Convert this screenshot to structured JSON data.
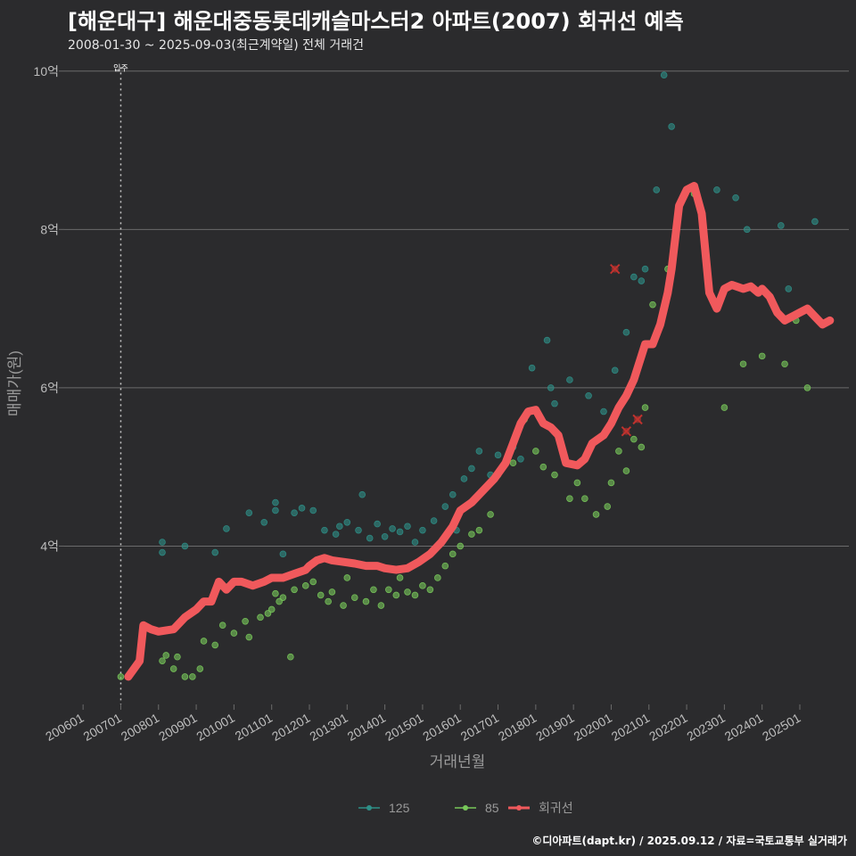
{
  "header": {
    "title": "[해운대구] 해운대중동롯데캐슬마스터2 아파트(2007) 회귀선 예측",
    "subtitle": "2008-01-30 ~ 2025-09-03(최근계약일) 전체 거래건"
  },
  "footer": {
    "credit": "©디아파트(dapt.kr) / 2025.09.12 / 자료=국토교통부 실거래가"
  },
  "colors": {
    "background": "#2b2b2d",
    "s125": "#2e8f87",
    "s85": "#78c85a",
    "regression": "#f0595c",
    "marker": "#c0322e",
    "grid": "#6b6b6b"
  },
  "chart_data": {
    "type": "scatter",
    "xlabel": "거래년월",
    "ylabel": "매매가(원)",
    "x_ticks": [
      "200601",
      "200701",
      "200801",
      "200901",
      "201001",
      "201101",
      "201201",
      "201301",
      "201401",
      "201501",
      "201601",
      "201701",
      "201801",
      "201901",
      "202001",
      "202101",
      "202201",
      "202301",
      "202401",
      "202501"
    ],
    "y_ticks": [
      "4억",
      "6억",
      "8억",
      "10억"
    ],
    "y_tick_values": [
      4,
      6,
      8,
      10
    ],
    "ylim": [
      2,
      10.2
    ],
    "xlim": [
      2005.5,
      2026.3
    ],
    "unit": "억",
    "vline": {
      "x": 2007.0,
      "label": "입주"
    },
    "legend": {
      "position": "bottom",
      "items": [
        {
          "key": "125",
          "label": "125"
        },
        {
          "key": "85",
          "label": "85"
        },
        {
          "key": "reg",
          "label": "회귀선"
        }
      ]
    },
    "series": [
      {
        "name": "125",
        "points": [
          [
            2008.1,
            4.05
          ],
          [
            2008.1,
            3.92
          ],
          [
            2008.7,
            4.0
          ],
          [
            2009.5,
            3.92
          ],
          [
            2009.8,
            4.22
          ],
          [
            2010.4,
            4.42
          ],
          [
            2010.8,
            4.3
          ],
          [
            2011.1,
            4.55
          ],
          [
            2011.1,
            4.45
          ],
          [
            2011.3,
            3.9
          ],
          [
            2011.6,
            4.42
          ],
          [
            2011.8,
            4.48
          ],
          [
            2012.1,
            4.45
          ],
          [
            2012.4,
            4.2
          ],
          [
            2012.7,
            4.15
          ],
          [
            2012.8,
            4.25
          ],
          [
            2013.0,
            4.3
          ],
          [
            2013.3,
            4.2
          ],
          [
            2013.4,
            4.65
          ],
          [
            2013.6,
            4.1
          ],
          [
            2013.8,
            4.28
          ],
          [
            2014.0,
            4.12
          ],
          [
            2014.2,
            4.22
          ],
          [
            2014.4,
            4.18
          ],
          [
            2014.6,
            4.25
          ],
          [
            2014.8,
            4.05
          ],
          [
            2015.0,
            4.2
          ],
          [
            2015.3,
            4.32
          ],
          [
            2015.6,
            4.5
          ],
          [
            2015.8,
            4.65
          ],
          [
            2015.9,
            4.2
          ],
          [
            2016.1,
            4.85
          ],
          [
            2016.3,
            4.98
          ],
          [
            2016.5,
            5.2
          ],
          [
            2016.8,
            4.9
          ],
          [
            2017.0,
            5.15
          ],
          [
            2017.4,
            5.25
          ],
          [
            2017.6,
            5.1
          ],
          [
            2017.9,
            6.25
          ],
          [
            2018.3,
            6.6
          ],
          [
            2018.4,
            6.0
          ],
          [
            2018.5,
            5.8
          ],
          [
            2018.9,
            6.1
          ],
          [
            2019.4,
            5.9
          ],
          [
            2019.8,
            5.7
          ],
          [
            2020.1,
            6.22
          ],
          [
            2020.4,
            6.7
          ],
          [
            2020.6,
            7.4
          ],
          [
            2020.8,
            7.35
          ],
          [
            2021.4,
            9.95
          ],
          [
            2021.6,
            9.3
          ],
          [
            2021.2,
            8.5
          ],
          [
            2022.8,
            8.5
          ],
          [
            2023.3,
            8.4
          ],
          [
            2023.6,
            8.0
          ],
          [
            2024.5,
            8.05
          ],
          [
            2024.7,
            7.25
          ],
          [
            2025.4,
            8.1
          ],
          [
            2020.9,
            7.5
          ]
        ]
      },
      {
        "name": "85",
        "points": [
          [
            2007.0,
            2.35
          ],
          [
            2008.1,
            2.55
          ],
          [
            2008.2,
            2.62
          ],
          [
            2008.4,
            2.45
          ],
          [
            2008.5,
            2.6
          ],
          [
            2008.7,
            2.35
          ],
          [
            2008.9,
            2.35
          ],
          [
            2009.1,
            2.45
          ],
          [
            2009.2,
            2.8
          ],
          [
            2009.5,
            2.75
          ],
          [
            2009.7,
            3.0
          ],
          [
            2010.0,
            2.9
          ],
          [
            2010.3,
            3.05
          ],
          [
            2010.4,
            2.85
          ],
          [
            2010.7,
            3.1
          ],
          [
            2010.9,
            3.15
          ],
          [
            2011.0,
            3.2
          ],
          [
            2011.1,
            3.4
          ],
          [
            2011.2,
            3.3
          ],
          [
            2011.3,
            3.35
          ],
          [
            2011.5,
            2.6
          ],
          [
            2011.6,
            3.45
          ],
          [
            2011.9,
            3.5
          ],
          [
            2012.1,
            3.55
          ],
          [
            2012.3,
            3.38
          ],
          [
            2012.5,
            3.3
          ],
          [
            2012.6,
            3.42
          ],
          [
            2012.9,
            3.25
          ],
          [
            2013.0,
            3.6
          ],
          [
            2013.2,
            3.35
          ],
          [
            2013.5,
            3.3
          ],
          [
            2013.7,
            3.45
          ],
          [
            2013.9,
            3.25
          ],
          [
            2014.1,
            3.45
          ],
          [
            2014.3,
            3.38
          ],
          [
            2014.4,
            3.6
          ],
          [
            2014.6,
            3.42
          ],
          [
            2014.8,
            3.38
          ],
          [
            2015.0,
            3.5
          ],
          [
            2015.2,
            3.45
          ],
          [
            2015.4,
            3.6
          ],
          [
            2015.6,
            3.75
          ],
          [
            2015.8,
            3.9
          ],
          [
            2016.0,
            4.0
          ],
          [
            2016.3,
            4.15
          ],
          [
            2016.5,
            4.2
          ],
          [
            2016.8,
            4.4
          ],
          [
            2017.0,
            4.9
          ],
          [
            2017.4,
            5.05
          ],
          [
            2017.7,
            5.6
          ],
          [
            2018.0,
            5.2
          ],
          [
            2018.2,
            5.0
          ],
          [
            2018.5,
            4.9
          ],
          [
            2018.9,
            4.6
          ],
          [
            2019.1,
            4.8
          ],
          [
            2019.3,
            4.6
          ],
          [
            2019.6,
            4.4
          ],
          [
            2019.9,
            4.5
          ],
          [
            2020.0,
            4.8
          ],
          [
            2020.2,
            5.2
          ],
          [
            2020.4,
            4.95
          ],
          [
            2020.6,
            5.35
          ],
          [
            2020.8,
            5.25
          ],
          [
            2020.9,
            5.75
          ],
          [
            2021.1,
            7.05
          ],
          [
            2021.5,
            7.5
          ],
          [
            2023.0,
            5.75
          ],
          [
            2023.5,
            6.3
          ],
          [
            2024.0,
            6.4
          ],
          [
            2024.6,
            6.3
          ],
          [
            2024.9,
            6.85
          ],
          [
            2025.2,
            6.0
          ],
          [
            2022.2,
            8.45
          ]
        ]
      }
    ],
    "highlighted_points": [
      [
        2020.1,
        7.5
      ],
      [
        2020.4,
        5.45
      ],
      [
        2020.7,
        5.6
      ]
    ],
    "regression_line": [
      [
        2007.2,
        2.35
      ],
      [
        2007.5,
        2.55
      ],
      [
        2007.6,
        3.0
      ],
      [
        2007.8,
        2.95
      ],
      [
        2008.0,
        2.92
      ],
      [
        2008.4,
        2.95
      ],
      [
        2008.7,
        3.1
      ],
      [
        2009.0,
        3.2
      ],
      [
        2009.2,
        3.3
      ],
      [
        2009.4,
        3.3
      ],
      [
        2009.6,
        3.55
      ],
      [
        2009.8,
        3.45
      ],
      [
        2010.0,
        3.55
      ],
      [
        2010.2,
        3.55
      ],
      [
        2010.5,
        3.5
      ],
      [
        2010.8,
        3.55
      ],
      [
        2011.0,
        3.6
      ],
      [
        2011.3,
        3.6
      ],
      [
        2011.6,
        3.65
      ],
      [
        2011.9,
        3.7
      ],
      [
        2012.0,
        3.75
      ],
      [
        2012.2,
        3.82
      ],
      [
        2012.4,
        3.85
      ],
      [
        2012.6,
        3.82
      ],
      [
        2012.9,
        3.8
      ],
      [
        2013.2,
        3.78
      ],
      [
        2013.5,
        3.75
      ],
      [
        2013.8,
        3.75
      ],
      [
        2014.0,
        3.72
      ],
      [
        2014.3,
        3.7
      ],
      [
        2014.6,
        3.72
      ],
      [
        2014.9,
        3.8
      ],
      [
        2015.2,
        3.9
      ],
      [
        2015.5,
        4.05
      ],
      [
        2015.8,
        4.25
      ],
      [
        2016.0,
        4.45
      ],
      [
        2016.3,
        4.55
      ],
      [
        2016.6,
        4.7
      ],
      [
        2016.9,
        4.85
      ],
      [
        2017.2,
        5.05
      ],
      [
        2017.4,
        5.3
      ],
      [
        2017.6,
        5.55
      ],
      [
        2017.8,
        5.7
      ],
      [
        2018.0,
        5.72
      ],
      [
        2018.2,
        5.55
      ],
      [
        2018.4,
        5.5
      ],
      [
        2018.6,
        5.4
      ],
      [
        2018.8,
        5.05
      ],
      [
        2019.1,
        5.02
      ],
      [
        2019.3,
        5.1
      ],
      [
        2019.5,
        5.3
      ],
      [
        2019.8,
        5.4
      ],
      [
        2020.0,
        5.55
      ],
      [
        2020.2,
        5.75
      ],
      [
        2020.4,
        5.9
      ],
      [
        2020.6,
        6.1
      ],
      [
        2020.8,
        6.4
      ],
      [
        2020.9,
        6.55
      ],
      [
        2021.1,
        6.55
      ],
      [
        2021.3,
        6.8
      ],
      [
        2021.5,
        7.2
      ],
      [
        2021.6,
        7.5
      ],
      [
        2021.8,
        8.3
      ],
      [
        2022.0,
        8.5
      ],
      [
        2022.2,
        8.55
      ],
      [
        2022.4,
        8.2
      ],
      [
        2022.6,
        7.2
      ],
      [
        2022.8,
        7.0
      ],
      [
        2023.0,
        7.25
      ],
      [
        2023.2,
        7.3
      ],
      [
        2023.5,
        7.25
      ],
      [
        2023.7,
        7.28
      ],
      [
        2023.9,
        7.2
      ],
      [
        2024.0,
        7.25
      ],
      [
        2024.2,
        7.15
      ],
      [
        2024.4,
        6.95
      ],
      [
        2024.6,
        6.85
      ],
      [
        2024.8,
        6.9
      ],
      [
        2025.0,
        6.95
      ],
      [
        2025.2,
        7.0
      ],
      [
        2025.4,
        6.9
      ],
      [
        2025.6,
        6.8
      ],
      [
        2025.8,
        6.85
      ]
    ]
  }
}
